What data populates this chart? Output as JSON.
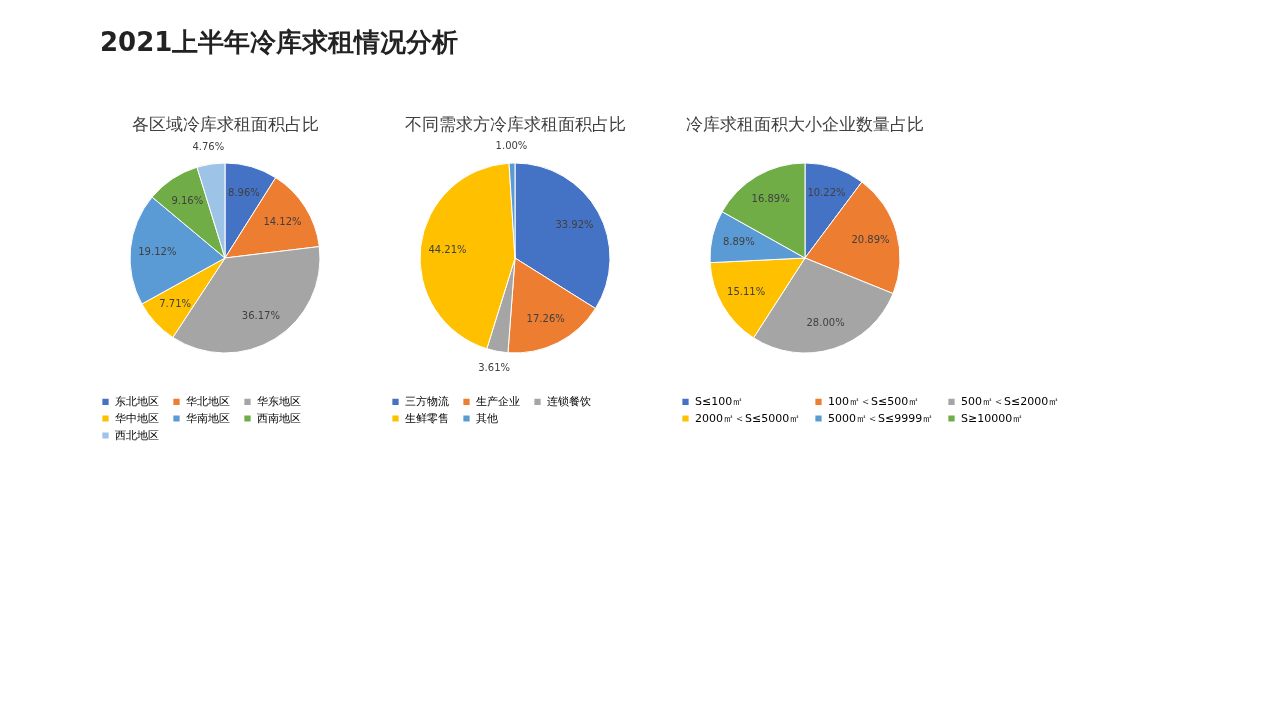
{
  "chart_data": [
    {
      "type": "pie",
      "title": "各区域冷库求租面积占比",
      "annotations": [
        "2021上半年冷库求租情况分析"
      ],
      "legend": "bottom",
      "categories": [
        "东北地区",
        "华北地区",
        "华东地区",
        "华中地区",
        "华南地区",
        "西南地区",
        "西北地区"
      ],
      "values": [
        8.96,
        14.12,
        36.17,
        7.71,
        19.12,
        9.16,
        4.76
      ],
      "value_labels": [
        "8.96%",
        "14.12%",
        "36.17%",
        "7.71%",
        "19.12%",
        "9.16%",
        "4.76%"
      ],
      "colors": [
        "#4472c4",
        "#ed7d31",
        "#a5a5a5",
        "#ffc000",
        "#5b9bd5",
        "#70ad47",
        "#9dc3e6"
      ]
    },
    {
      "type": "pie",
      "title": "不同需求方冷库求租面积占比",
      "legend": "bottom",
      "categories": [
        "三方物流",
        "生产企业",
        "连锁餐饮",
        "生鲜零售",
        "其他"
      ],
      "values": [
        33.92,
        17.26,
        3.61,
        44.21,
        1.0
      ],
      "value_labels": [
        "33.92%",
        "17.26%",
        "3.61%",
        "44.21%",
        "1.00%"
      ],
      "colors": [
        "#4472c4",
        "#ed7d31",
        "#a5a5a5",
        "#ffc000",
        "#5b9bd5"
      ]
    },
    {
      "type": "pie",
      "title": "冷库求租面积大小企业数量占比",
      "legend": "bottom",
      "categories": [
        "S≤100㎡",
        "100㎡＜S≤500㎡",
        "500㎡＜S≤2000㎡",
        "2000㎡＜S≤5000㎡",
        "5000㎡＜S≤9999㎡",
        "S≥10000㎡"
      ],
      "values": [
        10.22,
        20.89,
        28.0,
        15.11,
        8.89,
        16.89
      ],
      "value_labels": [
        "10.22%",
        "20.89%",
        "28.00%",
        "15.11%",
        "8.89%",
        "16.89%"
      ],
      "colors": [
        "#4472c4",
        "#ed7d31",
        "#a5a5a5",
        "#ffc000",
        "#5b9bd5",
        "#70ad47"
      ]
    }
  ]
}
